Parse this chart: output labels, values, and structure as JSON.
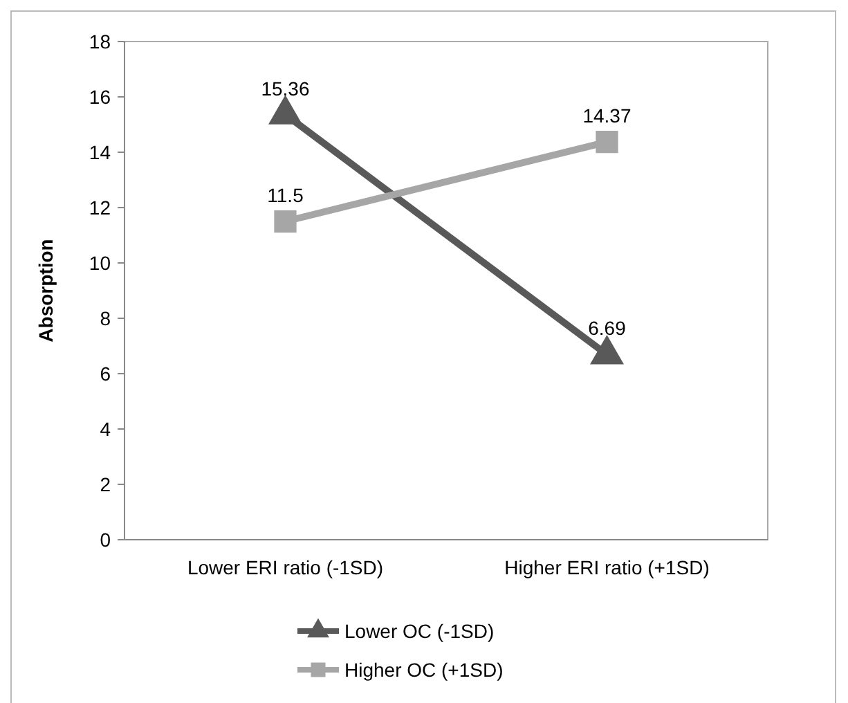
{
  "chart_data": {
    "type": "line",
    "ylabel": "Absorption",
    "categories": [
      "Lower ERI ratio (-1SD)",
      "Higher ERI ratio (+1SD)"
    ],
    "series": [
      {
        "name": "Lower OC (-1SD)",
        "color": "#595959",
        "values": [
          15.36,
          6.69
        ],
        "marker": "triangle"
      },
      {
        "name": "Higher OC (+1SD)",
        "color": "#a6a6a6",
        "values": [
          11.5,
          14.37
        ],
        "marker": "square"
      }
    ],
    "ylim": [
      0,
      18
    ],
    "yticks": [
      0,
      2,
      4,
      6,
      8,
      10,
      12,
      14,
      16,
      18
    ],
    "grid": false,
    "legend": "bottom",
    "data_labels": true,
    "line_style": "solid"
  }
}
